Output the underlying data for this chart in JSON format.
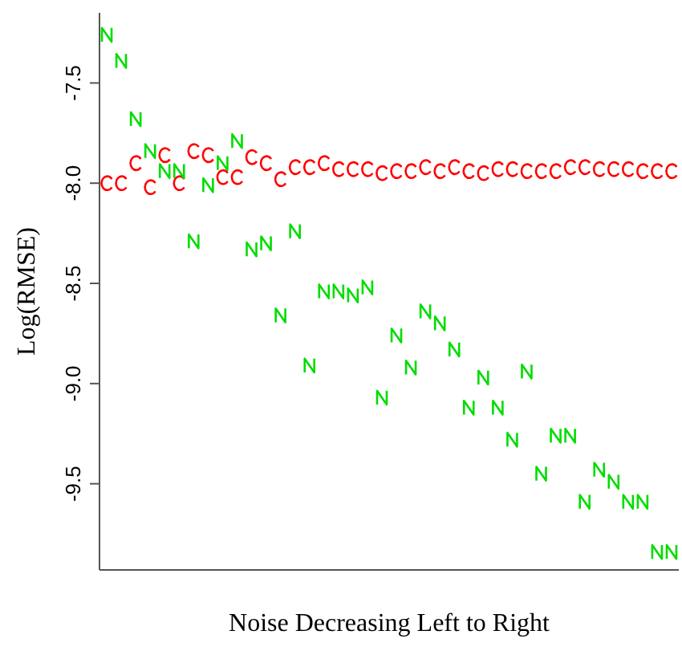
{
  "chart_data": {
    "type": "scatter",
    "xlabel": "Noise Decreasing Left to Right",
    "ylabel": "Log(RMSE)",
    "categories": [
      null,
      null,
      null,
      null,
      null,
      null,
      null,
      null,
      null,
      null,
      null,
      null,
      null,
      null,
      null,
      null,
      null,
      null,
      null,
      null,
      null,
      null,
      null,
      null,
      null,
      null,
      null,
      null,
      null,
      null,
      null,
      null,
      null,
      null,
      null,
      null,
      null,
      null,
      null,
      null
    ],
    "ylim": [
      -9.93,
      -7.15
    ],
    "yticks": [
      -7.5,
      {
        "value": -8,
        "label": "-8.0"
      },
      -8.5,
      {
        "value": -9,
        "label": "-9.0"
      },
      -9.5
    ],
    "grid": false,
    "legend": false,
    "series": [
      {
        "color": "#ff0000",
        "values": [
          -8.0,
          -8.0,
          -7.9,
          -8.02,
          -7.86,
          -8.0,
          -7.84,
          -7.86,
          -7.97,
          -7.97,
          -7.87,
          -7.9,
          -7.98,
          -7.92,
          -7.92,
          -7.9,
          -7.93,
          -7.93,
          -7.93,
          -7.95,
          -7.94,
          -7.94,
          -7.92,
          -7.94,
          -7.92,
          -7.94,
          -7.95,
          -7.93,
          -7.93,
          -7.94,
          -7.94,
          -7.94,
          -7.92,
          -7.92,
          -7.93,
          -7.93,
          -7.93,
          -7.94,
          -7.94,
          -7.94
        ]
      },
      {
        "color": "#00dd00",
        "values": [
          -7.26,
          -7.39,
          -7.68,
          -7.84,
          -7.94,
          -7.94,
          -8.29,
          -8.01,
          -7.9,
          -7.79,
          -8.33,
          -8.3,
          -8.66,
          -8.24,
          -8.91,
          -8.54,
          -8.54,
          -8.56,
          -8.52,
          -9.07,
          -8.76,
          -8.92,
          -8.64,
          -8.7,
          -8.83,
          -9.12,
          -8.97,
          -9.12,
          -9.28,
          -8.94,
          -9.45,
          -9.26,
          -9.26,
          -9.59,
          -9.43,
          -9.49,
          -9.59,
          -9.59,
          -9.84,
          -9.84
        ]
      }
    ]
  }
}
